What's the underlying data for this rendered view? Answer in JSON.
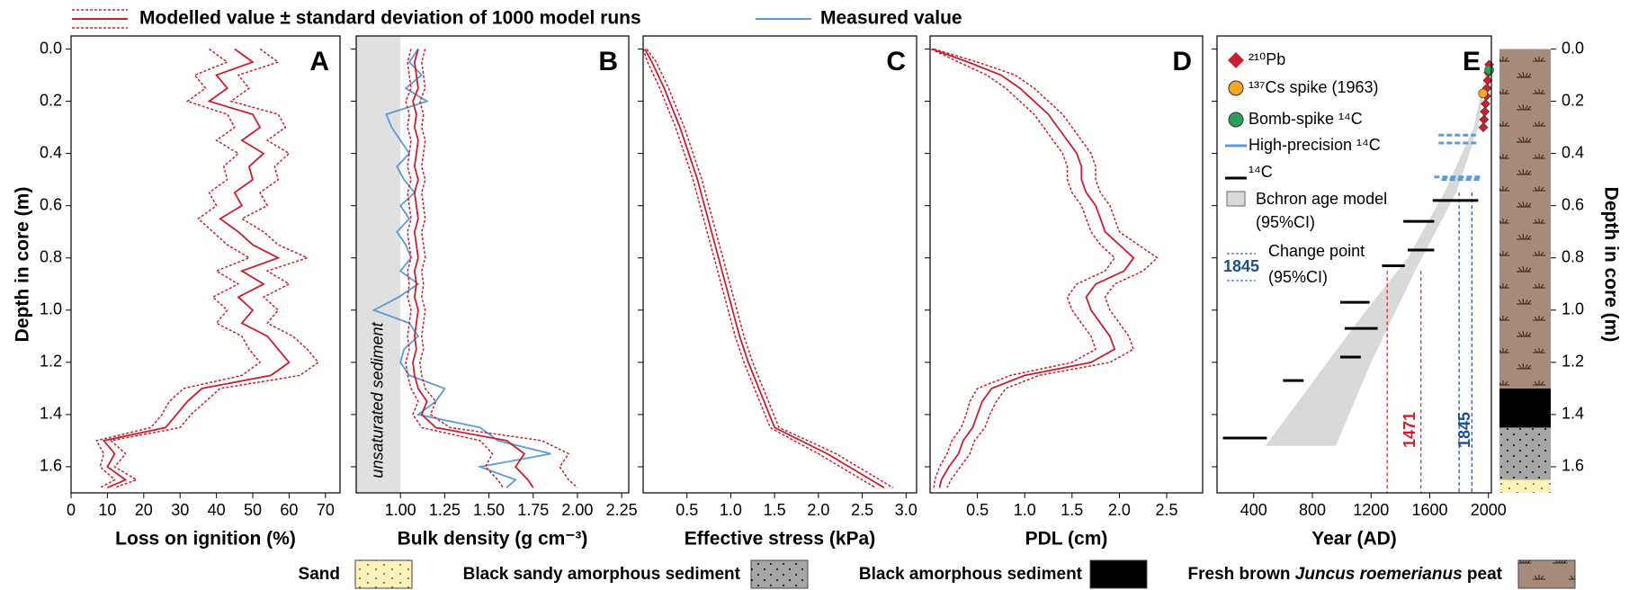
{
  "legend": [
    {
      "label": "Modelled value ± standard deviation of 1000 model runs",
      "color": "#c8202f",
      "style": "band"
    },
    {
      "label": "Measured value",
      "color": "#5b9bd5",
      "style": "line"
    }
  ],
  "depth_axis": {
    "label": "Depth in core (m)",
    "ylim": [
      -0.05,
      1.7
    ],
    "yticks": [
      {
        "value": 0,
        "label": "0.0"
      },
      0.2,
      0.4,
      0.6,
      0.8,
      {
        "value": 1,
        "label": "1.0"
      },
      1.2,
      1.4,
      1.6
    ]
  },
  "depth": [
    0,
    0.05,
    0.1,
    0.15,
    0.2,
    0.25,
    0.3,
    0.35,
    0.4,
    0.45,
    0.5,
    0.55,
    0.6,
    0.65,
    0.7,
    0.75,
    0.8,
    0.85,
    0.9,
    0.95,
    1.0,
    1.05,
    1.1,
    1.15,
    1.2,
    1.25,
    1.3,
    1.35,
    1.4,
    1.45,
    1.5,
    1.55,
    1.6,
    1.65,
    1.68
  ],
  "chart_data": [
    {
      "type": "line",
      "panel": "A",
      "xlabel": "Loss on ignition (%)",
      "xlim": [
        0,
        74
      ],
      "xticks": [
        0,
        10,
        20,
        30,
        40,
        50,
        60,
        70
      ],
      "series": [
        {
          "color": "#c8202f",
          "values": [
            45,
            50,
            40,
            43,
            38,
            50,
            52,
            47,
            53,
            49,
            50,
            45,
            47,
            41,
            46,
            50,
            57,
            47,
            53,
            46,
            50,
            47,
            54,
            57,
            60,
            55,
            36,
            32,
            29,
            26,
            9,
            12,
            10,
            15,
            10
          ],
          "lower": [
            38,
            43,
            34,
            37,
            32,
            43,
            45,
            40,
            46,
            42,
            43,
            38,
            40,
            35,
            39,
            43,
            49,
            40,
            46,
            39,
            43,
            40,
            47,
            49,
            52,
            47,
            31,
            27,
            25,
            22,
            7,
            9,
            8,
            12,
            8
          ],
          "upper": [
            52,
            57,
            46,
            49,
            44,
            57,
            59,
            54,
            60,
            56,
            57,
            52,
            54,
            47,
            53,
            57,
            65,
            54,
            60,
            53,
            57,
            54,
            61,
            65,
            68,
            63,
            41,
            37,
            33,
            30,
            11,
            15,
            12,
            18,
            12
          ]
        }
      ]
    },
    {
      "type": "line",
      "panel": "B",
      "xlabel": "Bulk density (g cm⁻³)",
      "xlim": [
        0.75,
        2.29
      ],
      "xticks": [
        {
          "value": 1,
          "label": "1.00"
        },
        1.25,
        {
          "value": 1.5,
          "label": "1.50"
        },
        1.75,
        {
          "value": 2,
          "label": "2.00"
        },
        2.25
      ],
      "shade": {
        "label": "unsaturated sediment",
        "xlim": [
          0.75,
          1.0
        ],
        "color": "#e0e0e0"
      },
      "series": [
        {
          "color": "#5b9bd5",
          "values": [
            1.1,
            1.05,
            1.12,
            1.03,
            1.15,
            0.92,
            0.95,
            1.0,
            1.05,
            0.98,
            1.02,
            1.08,
            1.0,
            1.05,
            0.98,
            1.03,
            1.06,
            1.0,
            1.1,
            0.99,
            0.85,
            1.05,
            1.1,
            1.02,
            1.0,
            1.05,
            1.25,
            1.2,
            1.1,
            1.45,
            1.55,
            1.85,
            1.45,
            1.65,
            1.6
          ]
        },
        {
          "color": "#c8202f",
          "values": [
            1.1,
            1.08,
            1.09,
            1.1,
            1.07,
            1.09,
            1.08,
            1.1,
            1.09,
            1.08,
            1.1,
            1.08,
            1.09,
            1.1,
            1.08,
            1.09,
            1.1,
            1.08,
            1.09,
            1.08,
            1.1,
            1.09,
            1.08,
            1.09,
            1.07,
            1.08,
            1.1,
            1.15,
            1.12,
            1.2,
            1.6,
            1.7,
            1.65,
            1.72,
            1.75
          ],
          "lower": [
            1.06,
            1.04,
            1.05,
            1.06,
            1.03,
            1.05,
            1.04,
            1.06,
            1.05,
            1.04,
            1.06,
            1.04,
            1.05,
            1.06,
            1.04,
            1.05,
            1.06,
            1.04,
            1.05,
            1.04,
            1.06,
            1.05,
            1.04,
            1.05,
            1.03,
            1.04,
            1.06,
            1.1,
            1.07,
            1.12,
            1.45,
            1.52,
            1.48,
            1.55,
            1.58
          ],
          "upper": [
            1.14,
            1.12,
            1.13,
            1.14,
            1.11,
            1.13,
            1.12,
            1.14,
            1.13,
            1.12,
            1.14,
            1.12,
            1.13,
            1.14,
            1.12,
            1.13,
            1.14,
            1.12,
            1.13,
            1.12,
            1.14,
            1.13,
            1.12,
            1.13,
            1.11,
            1.12,
            1.14,
            1.2,
            1.17,
            1.28,
            1.8,
            1.95,
            1.9,
            1.95,
            2.0
          ]
        }
      ]
    },
    {
      "type": "line",
      "panel": "C",
      "xlabel": "Effective stress (kPa)",
      "xlim": [
        0,
        3.12
      ],
      "xticks": [
        0.5,
        {
          "value": 1,
          "label": "1.0"
        },
        1.5,
        {
          "value": 2,
          "label": "2.0"
        },
        2.5,
        {
          "value": 3,
          "label": "3.0"
        }
      ],
      "series": [
        {
          "color": "#c8202f",
          "values": [
            0.02,
            0.1,
            0.17,
            0.24,
            0.3,
            0.36,
            0.42,
            0.47,
            0.52,
            0.57,
            0.62,
            0.66,
            0.7,
            0.74,
            0.78,
            0.82,
            0.86,
            0.9,
            0.94,
            0.98,
            1.02,
            1.06,
            1.1,
            1.15,
            1.2,
            1.26,
            1.32,
            1.38,
            1.44,
            1.5,
            1.8,
            2.1,
            2.35,
            2.6,
            2.75
          ],
          "lower": [
            0,
            0.05,
            0.12,
            0.19,
            0.25,
            0.31,
            0.37,
            0.42,
            0.47,
            0.52,
            0.57,
            0.61,
            0.65,
            0.69,
            0.73,
            0.77,
            0.81,
            0.85,
            0.89,
            0.93,
            0.97,
            1.01,
            1.05,
            1.1,
            1.15,
            1.21,
            1.27,
            1.33,
            1.39,
            1.45,
            1.72,
            2.0,
            2.25,
            2.5,
            2.65
          ],
          "upper": [
            0.04,
            0.15,
            0.22,
            0.29,
            0.35,
            0.41,
            0.47,
            0.52,
            0.57,
            0.62,
            0.67,
            0.71,
            0.75,
            0.79,
            0.83,
            0.87,
            0.91,
            0.95,
            0.99,
            1.03,
            1.07,
            1.11,
            1.15,
            1.2,
            1.25,
            1.31,
            1.37,
            1.43,
            1.49,
            1.55,
            1.88,
            2.2,
            2.45,
            2.7,
            2.85
          ]
        }
      ]
    },
    {
      "type": "line",
      "panel": "D",
      "xlabel": "PDL (cm)",
      "xlim": [
        0,
        2.88
      ],
      "xticks": [
        0.5,
        {
          "value": 1,
          "label": "1.0"
        },
        1.5,
        {
          "value": 2,
          "label": "2.0"
        },
        2.5
      ],
      "series": [
        {
          "color": "#c8202f",
          "values": [
            0.02,
            0.4,
            0.75,
            0.95,
            1.1,
            1.25,
            1.35,
            1.45,
            1.55,
            1.6,
            1.6,
            1.65,
            1.75,
            1.8,
            1.85,
            2.0,
            2.15,
            2.05,
            1.75,
            1.65,
            1.7,
            1.8,
            1.9,
            1.95,
            1.7,
            1.0,
            0.65,
            0.55,
            0.5,
            0.45,
            0.35,
            0.3,
            0.2,
            0.12,
            0.1
          ],
          "lower": [
            0.01,
            0.3,
            0.6,
            0.8,
            0.95,
            1.1,
            1.2,
            1.3,
            1.4,
            1.45,
            1.45,
            1.5,
            1.6,
            1.65,
            1.7,
            1.8,
            1.95,
            1.85,
            1.55,
            1.45,
            1.5,
            1.6,
            1.7,
            1.75,
            1.5,
            0.85,
            0.5,
            0.42,
            0.38,
            0.33,
            0.23,
            0.18,
            0.1,
            0.05,
            0.04
          ],
          "upper": [
            0.04,
            0.5,
            0.9,
            1.1,
            1.25,
            1.4,
            1.5,
            1.6,
            1.7,
            1.75,
            1.75,
            1.8,
            1.9,
            1.95,
            2.0,
            2.2,
            2.4,
            2.25,
            1.95,
            1.85,
            1.9,
            2.0,
            2.1,
            2.15,
            1.9,
            1.15,
            0.8,
            0.7,
            0.63,
            0.58,
            0.47,
            0.42,
            0.32,
            0.22,
            0.18
          ]
        }
      ]
    },
    {
      "type": "age_depth",
      "panel": "E",
      "xlabel": "Year (AD)",
      "xlim": [
        150,
        2020
      ],
      "xticks": [
        400,
        800,
        1200,
        1600,
        2000
      ],
      "age_model": {
        "name": [
          "Bchron age model",
          "(95%CI)"
        ],
        "color": "#d9d9d9",
        "years": [
          2015,
          1900,
          1700,
          1450,
          1100,
          480,
          960,
          1200,
          1500,
          1780,
          1930,
          2015
        ],
        "depths": [
          0,
          0.3,
          0.55,
          0.8,
          1.05,
          1.52,
          1.52,
          1.2,
          0.85,
          0.55,
          0.3,
          0
        ]
      },
      "pb210": {
        "name": "²¹⁰Pb",
        "color": "#c8202f",
        "years": [
          2005,
          2000,
          1995,
          1990,
          1985,
          1980,
          1975,
          1970,
          1965
        ],
        "depths": [
          0.06,
          0.09,
          0.12,
          0.15,
          0.18,
          0.21,
          0.24,
          0.27,
          0.3
        ]
      },
      "cs137": {
        "name": "¹³⁷Cs spike (1963)",
        "color": "#f5a623",
        "years": [
          1963
        ],
        "depths": [
          0.17
        ]
      },
      "bomb": {
        "name": "Bomb-spike ¹⁴C",
        "color": "#2ca05a",
        "years": [
          2005
        ],
        "depths": [
          0.08
        ]
      },
      "hp14c": {
        "name": "High-precision ¹⁴C",
        "color": "#5b9bd5",
        "ranges": [
          [
            1660,
            1915,
            0.33
          ],
          [
            1660,
            1930,
            0.36
          ],
          [
            1630,
            1950,
            0.49
          ],
          [
            1680,
            1940,
            0.5
          ]
        ]
      },
      "c14": {
        "name": "¹⁴C",
        "color": "#000000",
        "ranges": [
          [
            1620,
            1930,
            0.58
          ],
          [
            1420,
            1630,
            0.66
          ],
          [
            1450,
            1630,
            0.77
          ],
          [
            1275,
            1430,
            0.83
          ],
          [
            990,
            1190,
            0.97
          ],
          [
            1020,
            1245,
            1.07
          ],
          [
            990,
            1130,
            1.18
          ],
          [
            600,
            740,
            1.27
          ],
          [
            190,
            490,
            1.49
          ]
        ]
      },
      "change_points": {
        "name": [
          "Change point",
          "(95%CI)"
        ],
        "points": [
          {
            "year": 1471,
            "lower": 1310,
            "upper": 1540,
            "depth": 0.85,
            "color": "#c8202f"
          },
          {
            "year": 1845,
            "lower": 1800,
            "upper": 1887,
            "depth": 0.55,
            "color": "#1f4e8c"
          }
        ]
      }
    }
  ],
  "lithology": [
    {
      "label": "Sand",
      "color": "#fdf1b8",
      "pattern": "sparse-dots",
      "top": 1.65,
      "bottom": 1.7
    },
    {
      "label": "Black sandy amorphous sediment",
      "color": "#a6a6a6",
      "pattern": "dots",
      "top": 1.45,
      "bottom": 1.65
    },
    {
      "label": "Black amorphous sediment",
      "color": "#000000",
      "pattern": "none",
      "top": 1.3,
      "bottom": 1.45
    },
    {
      "label": [
        {
          "text": "Fresh brown "
        },
        {
          "text": "Juncus roemerianus",
          "italic": true
        },
        {
          "text": " peat"
        }
      ],
      "color": "#a78b7a",
      "pattern": "grass",
      "top": 0,
      "bottom": 1.3
    }
  ]
}
